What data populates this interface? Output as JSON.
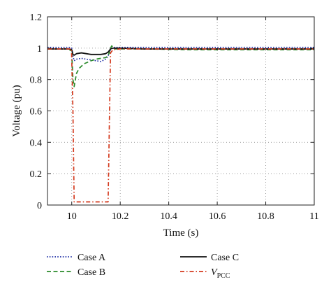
{
  "chart_data": {
    "type": "line",
    "title": "",
    "xlabel": "Time (s)",
    "ylabel": "Voltage (pu)",
    "xlim": [
      9.9,
      11
    ],
    "ylim": [
      0,
      1.2
    ],
    "xticks": [
      10,
      10.2,
      10.4,
      10.6,
      10.8,
      11
    ],
    "xtick_labels": [
      "10",
      "10.2",
      "10.4",
      "10.6",
      "10.8",
      "11"
    ],
    "yticks": [
      0,
      0.2,
      0.4,
      0.6,
      0.8,
      1,
      1.2
    ],
    "ytick_labels": [
      "0",
      "0.2",
      "0.4",
      "0.6",
      "0.8",
      "1",
      "1.2"
    ],
    "grid": true,
    "legend_position": "bottom",
    "series": [
      {
        "name": "Case A",
        "color": "#1f2fa6",
        "dash": "dotted",
        "x": [
          9.9,
          9.99,
          10.0,
          10.005,
          10.01,
          10.02,
          10.04,
          10.06,
          10.08,
          10.1,
          10.12,
          10.14,
          10.15,
          10.16,
          10.17,
          10.2,
          10.3,
          10.5,
          10.7,
          10.9,
          11.0
        ],
        "y": [
          1.005,
          1.005,
          1.0,
          0.95,
          0.92,
          0.93,
          0.935,
          0.93,
          0.925,
          0.92,
          0.915,
          0.93,
          0.95,
          0.99,
          1.005,
          1.005,
          1.005,
          1.005,
          1.005,
          1.005,
          1.005
        ]
      },
      {
        "name": "Case B",
        "color": "#2a8a2a",
        "dash": "dashed",
        "x": [
          9.9,
          9.99,
          10.0,
          10.005,
          10.01,
          10.015,
          10.02,
          10.03,
          10.05,
          10.08,
          10.1,
          10.12,
          10.14,
          10.15,
          10.16,
          10.165,
          10.17,
          10.18,
          10.2,
          10.3,
          10.5,
          10.7,
          10.9,
          11.0
        ],
        "y": [
          0.995,
          0.995,
          0.97,
          0.8,
          0.755,
          0.8,
          0.84,
          0.87,
          0.9,
          0.92,
          0.93,
          0.935,
          0.94,
          0.95,
          1.0,
          1.015,
          1.005,
          0.995,
          0.995,
          0.995,
          0.99,
          0.99,
          0.99,
          0.99
        ]
      },
      {
        "name": "Case C",
        "color": "#111111",
        "dash": "solid",
        "x": [
          9.9,
          9.99,
          10.0,
          10.005,
          10.01,
          10.02,
          10.04,
          10.06,
          10.08,
          10.1,
          10.12,
          10.14,
          10.15,
          10.16,
          10.17,
          10.2,
          10.3,
          10.5,
          10.7,
          10.9,
          11.0
        ],
        "y": [
          0.995,
          0.995,
          0.99,
          0.96,
          0.955,
          0.965,
          0.97,
          0.965,
          0.96,
          0.96,
          0.96,
          0.965,
          0.975,
          0.995,
          1.0,
          1.0,
          0.995,
          0.995,
          0.995,
          0.995,
          0.995
        ]
      },
      {
        "name": "VPCC",
        "color": "#d43a1e",
        "dash": "dashdot",
        "x": [
          9.9,
          9.999,
          10.005,
          10.01,
          10.015,
          10.1,
          10.15,
          10.155,
          10.16,
          10.17,
          10.2,
          10.4,
          10.6,
          10.8,
          11.0
        ],
        "y": [
          0.995,
          0.995,
          0.6,
          0.02,
          0.02,
          0.02,
          0.02,
          0.5,
          0.97,
          0.99,
          0.995,
          0.995,
          0.995,
          0.995,
          0.995
        ]
      }
    ]
  },
  "legend": {
    "items": [
      {
        "label": "Case A",
        "sub": ""
      },
      {
        "label": "Case B",
        "sub": ""
      },
      {
        "label": "Case C",
        "sub": ""
      },
      {
        "label": "V",
        "sub": "PCC"
      }
    ]
  }
}
